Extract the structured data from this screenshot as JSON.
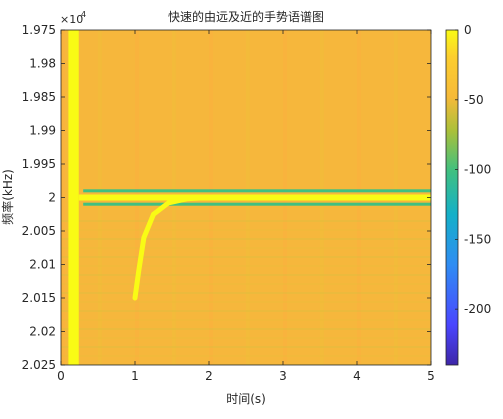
{
  "chart_data": {
    "type": "heatmap",
    "title": "快速的由远及近的手势语谱图",
    "xlabel": "时间(s)",
    "ylabel": "频率(kHz)",
    "x_range": [
      0,
      5
    ],
    "y_range": [
      19750,
      20250
    ],
    "y_direction": "reverse",
    "y_exponent_label": "×10",
    "y_exponent_power": "4",
    "x_ticks": [
      0,
      1,
      2,
      3,
      4,
      5
    ],
    "x_tick_labels": [
      "0",
      "1",
      "2",
      "3",
      "4",
      "5"
    ],
    "y_ticks": [
      19750,
      19800,
      19850,
      19900,
      19950,
      20000,
      20050,
      20100,
      20150,
      20200,
      20250
    ],
    "y_tick_labels": [
      "1.975",
      "1.98",
      "1.985",
      "1.99",
      "1.995",
      "2",
      "2.005",
      "2.01",
      "2.015",
      "2.02",
      "2.025"
    ],
    "colorbar": {
      "range": [
        -240,
        0
      ],
      "ticks": [
        0,
        -50,
        -100,
        -150,
        -200
      ],
      "tick_labels": [
        "0",
        "-50",
        "-100",
        "-150",
        "-200"
      ],
      "colormap": [
        "#3e26a8",
        "#4a46ff",
        "#2f8df3",
        "#14b0c8",
        "#40c080",
        "#abc039",
        "#f6ba39",
        "#fcce2e",
        "#f9fb15"
      ]
    },
    "background_level": -50,
    "features": [
      {
        "kind": "vertical_band",
        "x": [
          0.1,
          0.24
        ],
        "level": 0
      },
      {
        "kind": "horizontal_line",
        "y": 20000,
        "x": [
          0.24,
          5
        ],
        "level": -5
      },
      {
        "kind": "horizontal_line",
        "y": 19990,
        "x": [
          0.3,
          5
        ],
        "level": -110
      },
      {
        "kind": "horizontal_line",
        "y": 20010,
        "x": [
          0.3,
          5
        ],
        "level": -110
      },
      {
        "kind": "curve",
        "points": [
          [
            1.0,
            20150
          ],
          [
            1.05,
            20110
          ],
          [
            1.12,
            20060
          ],
          [
            1.25,
            20025
          ],
          [
            1.45,
            20008
          ],
          [
            1.7,
            20002
          ],
          [
            2.0,
            20000
          ]
        ],
        "level": 0
      }
    ]
  }
}
